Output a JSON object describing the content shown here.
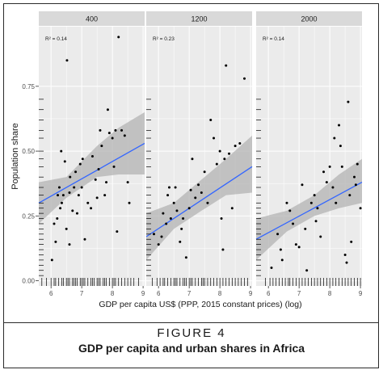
{
  "figure": {
    "label": "FIGURE 4",
    "caption": "GDP per capita and urban shares in Africa"
  },
  "chart_data": {
    "type": "scatter",
    "xlabel": "GDP per capita US$ (PPP, 2015 constant prices) (log)",
    "ylabel": "Population share",
    "xlim": [
      5.6,
      9.05
    ],
    "ylim": [
      -0.02,
      0.98
    ],
    "x_ticks": [
      6,
      7,
      8,
      9
    ],
    "y_ticks": [
      0.0,
      0.25,
      0.5,
      0.75
    ],
    "y_tick_labels": [
      "0.00",
      "0.25",
      "0.50",
      "0.75"
    ],
    "grid": true,
    "colors": {
      "panel_background": "#ebebeb",
      "gridline": "#ffffff",
      "strip_background": "#d9d9d9",
      "fit_line": "#3366ff",
      "confidence_band": "#b3b3b3",
      "points": "#000000"
    },
    "panels": [
      {
        "strip": "400",
        "r2_label": "R² = 0.14",
        "fit": {
          "x": [
            5.6,
            9.05
          ],
          "y": [
            0.3,
            0.53
          ]
        },
        "band": {
          "x": [
            5.6,
            6.5,
            7.5,
            8.2,
            9.05
          ],
          "lower": [
            0.22,
            0.32,
            0.4,
            0.41,
            0.41
          ],
          "upper": [
            0.38,
            0.4,
            0.52,
            0.59,
            0.65
          ]
        },
        "points": [
          [
            6.03,
            0.08
          ],
          [
            6.15,
            0.15
          ],
          [
            6.1,
            0.22
          ],
          [
            6.2,
            0.24
          ],
          [
            6.22,
            0.33
          ],
          [
            6.27,
            0.36
          ],
          [
            6.3,
            0.28
          ],
          [
            6.35,
            0.3
          ],
          [
            6.4,
            0.33
          ],
          [
            6.33,
            0.5
          ],
          [
            6.45,
            0.46
          ],
          [
            6.5,
            0.2
          ],
          [
            6.52,
            0.85
          ],
          [
            6.6,
            0.34
          ],
          [
            6.62,
            0.4
          ],
          [
            6.75,
            0.36
          ],
          [
            6.8,
            0.42
          ],
          [
            6.85,
            0.26
          ],
          [
            6.9,
            0.33
          ],
          [
            6.95,
            0.45
          ],
          [
            7.0,
            0.36
          ],
          [
            7.03,
            0.47
          ],
          [
            7.1,
            0.16
          ],
          [
            7.2,
            0.3
          ],
          [
            7.3,
            0.28
          ],
          [
            7.35,
            0.48
          ],
          [
            7.45,
            0.39
          ],
          [
            7.5,
            0.32
          ],
          [
            7.55,
            0.43
          ],
          [
            7.6,
            0.58
          ],
          [
            7.65,
            0.52
          ],
          [
            7.75,
            0.33
          ],
          [
            7.8,
            0.38
          ],
          [
            7.85,
            0.66
          ],
          [
            7.9,
            0.57
          ],
          [
            8.0,
            0.55
          ],
          [
            8.05,
            0.44
          ],
          [
            8.1,
            0.58
          ],
          [
            8.15,
            0.19
          ],
          [
            8.2,
            0.94
          ],
          [
            8.3,
            0.58
          ],
          [
            8.4,
            0.56
          ],
          [
            8.5,
            0.38
          ],
          [
            8.55,
            0.3
          ],
          [
            6.6,
            0.14
          ],
          [
            6.7,
            0.27
          ]
        ],
        "rug": [
          5.7,
          5.85,
          6.0,
          6.1,
          6.15,
          6.25,
          6.35,
          6.4,
          6.5,
          6.55,
          6.6,
          6.7,
          6.75,
          6.8,
          6.85,
          6.95,
          7.0,
          7.05,
          7.1,
          7.2,
          7.3,
          7.35,
          7.4,
          7.5,
          7.55,
          7.6,
          7.7,
          7.75,
          7.8,
          7.9,
          8.0,
          8.05,
          8.1,
          8.2,
          8.3,
          8.4,
          8.5,
          8.6,
          8.7,
          8.85
        ]
      },
      {
        "strip": "1200",
        "r2_label": "R² = 0.23",
        "fit": {
          "x": [
            5.6,
            9.05
          ],
          "y": [
            0.17,
            0.44
          ]
        },
        "band": {
          "x": [
            5.6,
            6.5,
            7.4,
            8.2,
            9.05
          ],
          "lower": [
            0.08,
            0.2,
            0.27,
            0.33,
            0.34
          ],
          "upper": [
            0.26,
            0.3,
            0.39,
            0.47,
            0.56
          ]
        },
        "points": [
          [
            5.85,
            0.18
          ],
          [
            6.0,
            0.14
          ],
          [
            6.1,
            0.17
          ],
          [
            6.15,
            0.26
          ],
          [
            6.25,
            0.22
          ],
          [
            6.3,
            0.33
          ],
          [
            6.35,
            0.36
          ],
          [
            6.4,
            0.24
          ],
          [
            6.5,
            0.3
          ],
          [
            6.55,
            0.36
          ],
          [
            6.6,
            0.27
          ],
          [
            6.7,
            0.15
          ],
          [
            6.75,
            0.2
          ],
          [
            6.8,
            0.24
          ],
          [
            6.9,
            0.09
          ],
          [
            7.0,
            0.28
          ],
          [
            7.05,
            0.35
          ],
          [
            7.1,
            0.47
          ],
          [
            7.2,
            0.32
          ],
          [
            7.3,
            0.37
          ],
          [
            7.4,
            0.34
          ],
          [
            7.5,
            0.42
          ],
          [
            7.6,
            0.3
          ],
          [
            7.7,
            0.62
          ],
          [
            7.8,
            0.55
          ],
          [
            7.9,
            0.45
          ],
          [
            8.0,
            0.5
          ],
          [
            8.05,
            0.24
          ],
          [
            8.1,
            0.12
          ],
          [
            8.15,
            0.47
          ],
          [
            8.2,
            0.83
          ],
          [
            8.3,
            0.49
          ],
          [
            8.4,
            0.28
          ],
          [
            8.5,
            0.52
          ],
          [
            8.65,
            0.53
          ],
          [
            8.8,
            0.78
          ]
        ],
        "rug": [
          5.8,
          5.95,
          6.05,
          6.15,
          6.2,
          6.3,
          6.4,
          6.5,
          6.55,
          6.6,
          6.7,
          6.8,
          6.85,
          6.9,
          7.0,
          7.05,
          7.1,
          7.2,
          7.3,
          7.4,
          7.45,
          7.5,
          7.6,
          7.7,
          7.8,
          7.9,
          8.0,
          8.1,
          8.2,
          8.3,
          8.4,
          8.5,
          8.6,
          8.7,
          8.8,
          8.9
        ]
      },
      {
        "strip": "2000",
        "r2_label": "R² = 0.14",
        "fit": {
          "x": [
            5.6,
            9.05
          ],
          "y": [
            0.16,
            0.38
          ]
        },
        "band": {
          "x": [
            5.6,
            6.6,
            7.5,
            8.3,
            9.05
          ],
          "lower": [
            0.08,
            0.19,
            0.25,
            0.28,
            0.3
          ],
          "upper": [
            0.24,
            0.27,
            0.33,
            0.41,
            0.47
          ]
        },
        "points": [
          [
            6.1,
            0.05
          ],
          [
            6.3,
            0.18
          ],
          [
            6.4,
            0.12
          ],
          [
            6.45,
            0.08
          ],
          [
            6.6,
            0.3
          ],
          [
            6.7,
            0.27
          ],
          [
            6.8,
            0.22
          ],
          [
            6.9,
            0.14
          ],
          [
            7.0,
            0.13
          ],
          [
            7.1,
            0.37
          ],
          [
            7.2,
            0.2
          ],
          [
            7.25,
            0.04
          ],
          [
            7.4,
            0.3
          ],
          [
            7.5,
            0.33
          ],
          [
            7.55,
            0.23
          ],
          [
            7.6,
            0.28
          ],
          [
            7.7,
            0.17
          ],
          [
            7.8,
            0.42
          ],
          [
            7.9,
            0.38
          ],
          [
            8.0,
            0.44
          ],
          [
            8.1,
            0.36
          ],
          [
            8.15,
            0.55
          ],
          [
            8.2,
            0.3
          ],
          [
            8.3,
            0.6
          ],
          [
            8.35,
            0.52
          ],
          [
            8.4,
            0.44
          ],
          [
            8.5,
            0.1
          ],
          [
            8.55,
            0.07
          ],
          [
            8.6,
            0.69
          ],
          [
            8.65,
            0.33
          ],
          [
            8.7,
            0.15
          ],
          [
            8.8,
            0.4
          ],
          [
            8.85,
            0.37
          ],
          [
            8.9,
            0.45
          ],
          [
            9.0,
            0.28
          ]
        ],
        "rug": [
          5.9,
          6.05,
          6.15,
          6.25,
          6.35,
          6.45,
          6.55,
          6.65,
          6.7,
          6.8,
          6.9,
          7.0,
          7.1,
          7.2,
          7.3,
          7.4,
          7.5,
          7.6,
          7.7,
          7.8,
          7.9,
          8.0,
          8.1,
          8.2,
          8.3,
          8.4,
          8.5,
          8.6,
          8.7,
          8.8,
          8.9,
          9.0
        ]
      }
    ],
    "y_rug": [
      0.02,
      0.04,
      0.06,
      0.08,
      0.1,
      0.12,
      0.14,
      0.16,
      0.18,
      0.2,
      0.22,
      0.24,
      0.26,
      0.28,
      0.3,
      0.33,
      0.36,
      0.4,
      0.44,
      0.47,
      0.5,
      0.55,
      0.58,
      0.62,
      0.66,
      0.7
    ]
  }
}
